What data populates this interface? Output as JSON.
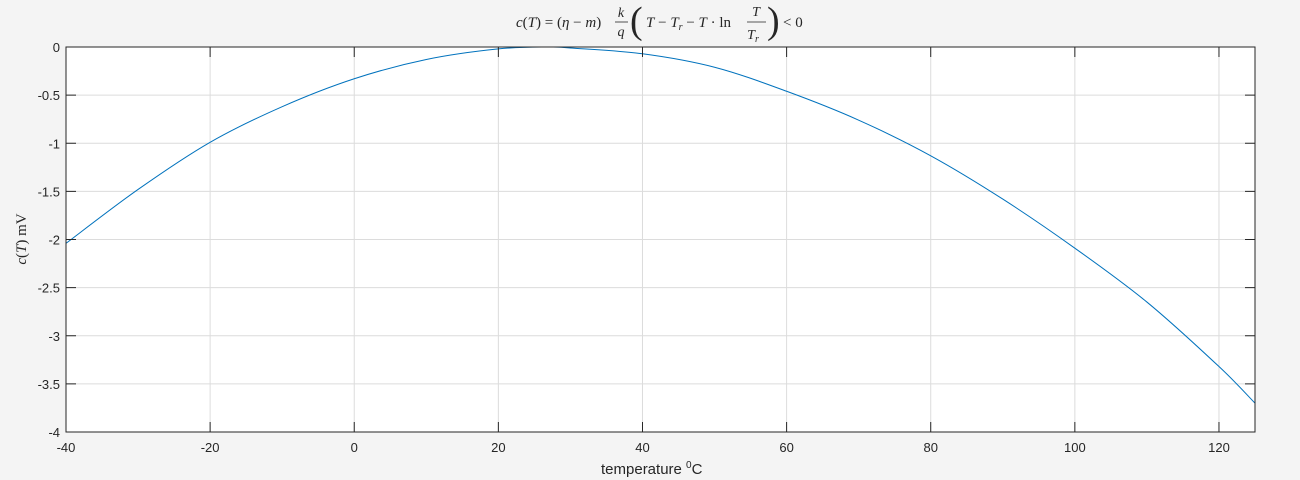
{
  "chart_data": {
    "type": "line",
    "title": "c(T) = (η − m) k/q (T − T_r − T · ln T/T_r) < 0",
    "xlabel": "temperature  °C",
    "ylabel": "c(T) mV",
    "xlim": [
      -40,
      125
    ],
    "ylim": [
      -4,
      0
    ],
    "xticks": [
      -40,
      -20,
      0,
      20,
      40,
      60,
      80,
      100,
      120
    ],
    "yticks": [
      0,
      -0.5,
      -1,
      -1.5,
      -2,
      -2.5,
      -3,
      -3.5,
      -4
    ],
    "xtick_labels": [
      "-40",
      "-20",
      "0",
      "20",
      "40",
      "60",
      "80",
      "100",
      "120"
    ],
    "ytick_labels": [
      "0",
      "-0.5",
      "-1",
      "-1.5",
      "-2",
      "-2.5",
      "-3",
      "-3.5",
      "-4"
    ],
    "grid": true,
    "legend": "none",
    "series": [
      {
        "color": "#0072BD",
        "x": [
          -40,
          -30,
          -20,
          -10,
          0,
          10,
          20,
          27,
          30,
          40,
          50,
          60,
          70,
          80,
          90,
          100,
          110,
          120,
          125
        ],
        "y": [
          -2.04,
          -1.48,
          -0.99,
          -0.62,
          -0.33,
          -0.13,
          -0.02,
          0.0,
          -0.01,
          -0.07,
          -0.21,
          -0.46,
          -0.76,
          -1.13,
          -1.58,
          -2.09,
          -2.65,
          -3.32,
          -3.7
        ]
      }
    ]
  }
}
